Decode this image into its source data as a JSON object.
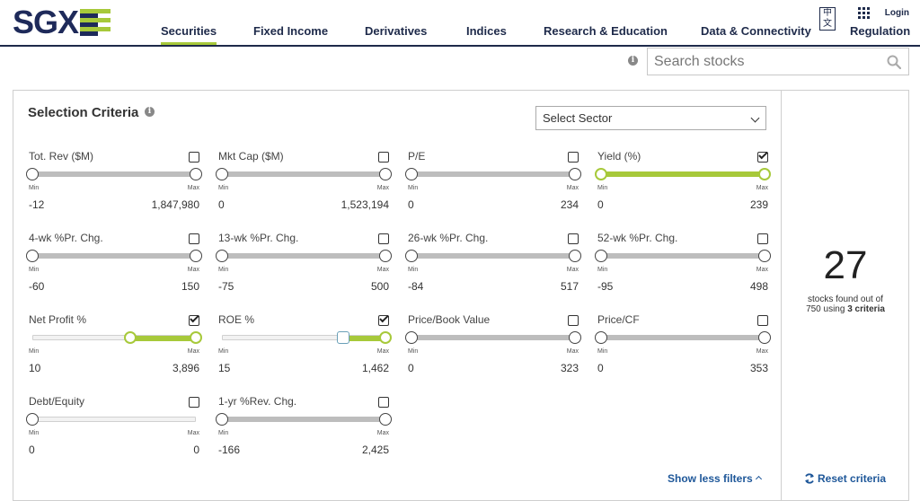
{
  "header": {
    "logo_text": "SGX",
    "nav": [
      {
        "label": "Securities",
        "active": true
      },
      {
        "label": "Fixed Income",
        "active": false
      },
      {
        "label": "Derivatives",
        "active": false
      },
      {
        "label": "Indices",
        "active": false
      },
      {
        "label": "Research & Education",
        "active": false
      },
      {
        "label": "Data & Connectivity",
        "active": false
      },
      {
        "label": "Regulation",
        "active": false
      }
    ],
    "lang_label": "中文",
    "login_label": "Login"
  },
  "search": {
    "placeholder": "Search stocks",
    "value": ""
  },
  "panel": {
    "title": "Selection Criteria",
    "sector_select": "Select Sector",
    "min_label": "Min",
    "max_label": "Max",
    "filters": [
      {
        "label": "Tot. Rev ($M)",
        "checked": false,
        "min": "-12",
        "max": "1,847,980",
        "range": [
          0,
          1
        ],
        "style": "default"
      },
      {
        "label": "Mkt Cap ($M)",
        "checked": false,
        "min": "0",
        "max": "1,523,194",
        "range": [
          0,
          1
        ],
        "style": "default"
      },
      {
        "label": "P/E",
        "checked": false,
        "min": "0",
        "max": "234",
        "range": [
          0,
          1
        ],
        "style": "default"
      },
      {
        "label": "Yield (%)",
        "checked": true,
        "min": "0",
        "max": "239",
        "range": [
          0,
          1
        ],
        "style": "active"
      },
      {
        "label": "4-wk %Pr. Chg.",
        "checked": false,
        "min": "-60",
        "max": "150",
        "range": [
          0,
          1
        ],
        "style": "default"
      },
      {
        "label": "13-wk %Pr. Chg.",
        "checked": false,
        "min": "-75",
        "max": "500",
        "range": [
          0,
          1
        ],
        "style": "default"
      },
      {
        "label": "26-wk %Pr. Chg.",
        "checked": false,
        "min": "-84",
        "max": "517",
        "range": [
          0,
          1
        ],
        "style": "default"
      },
      {
        "label": "52-wk %Pr. Chg.",
        "checked": false,
        "min": "-95",
        "max": "498",
        "range": [
          0,
          1
        ],
        "style": "default"
      },
      {
        "label": "Net Profit %",
        "checked": true,
        "min": "10",
        "max": "3,896",
        "range": [
          0.6,
          1
        ],
        "style": "active-partial"
      },
      {
        "label": "ROE %",
        "checked": true,
        "min": "15",
        "max": "1,462",
        "range": [
          0.74,
          1
        ],
        "style": "active-partial"
      },
      {
        "label": "Price/Book Value",
        "checked": false,
        "min": "0",
        "max": "323",
        "range": [
          0,
          1
        ],
        "style": "default"
      },
      {
        "label": "Price/CF",
        "checked": false,
        "min": "0",
        "max": "353",
        "range": [
          0,
          1
        ],
        "style": "default"
      },
      {
        "label": "Debt/Equity",
        "checked": false,
        "min": "0",
        "max": "0",
        "range": [
          0,
          0
        ],
        "style": "empty"
      },
      {
        "label": "1-yr %Rev. Chg.",
        "checked": false,
        "min": "-166",
        "max": "2,425",
        "range": [
          0,
          1
        ],
        "style": "default"
      }
    ],
    "show_less": "Show less filters"
  },
  "result": {
    "count": "27",
    "desc_prefix": "stocks found out of",
    "desc_line2_prefix": "750 using",
    "criteria": "3 criteria",
    "reset": "Reset criteria"
  },
  "colors": {
    "brand_navy": "#1e2a5a",
    "brand_green": "#a7c93a",
    "link_blue": "#1e5799"
  }
}
